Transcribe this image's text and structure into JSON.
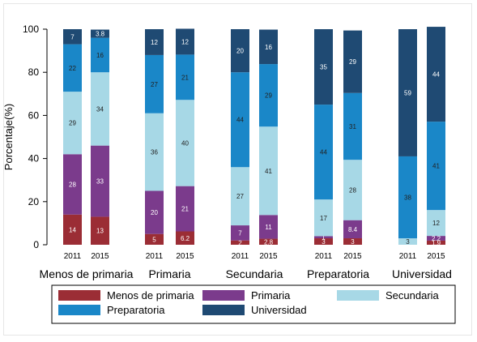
{
  "chart_data": {
    "type": "bar",
    "stacked": true,
    "ylabel": "Porcentaje(%)",
    "ylim": [
      0,
      100
    ],
    "yticks": [
      0,
      20,
      40,
      60,
      80,
      100
    ],
    "groups": [
      "Menos de primaria",
      "Primaria",
      "Secundaria",
      "Preparatoria",
      "Universidad"
    ],
    "years": [
      "2011",
      "2015"
    ],
    "series": [
      {
        "name": "Menos de primaria",
        "color": "#9b2d35",
        "values": [
          [
            14,
            13
          ],
          [
            5,
            6.2
          ],
          [
            2,
            2.8
          ],
          [
            3,
            3
          ],
          [
            0,
            1.9
          ]
        ],
        "labels": [
          [
            "14",
            "13"
          ],
          [
            "5",
            "6.2"
          ],
          [
            "2",
            "2.8"
          ],
          [
            "3",
            "3"
          ],
          [
            "",
            "1.9"
          ]
        ]
      },
      {
        "name": "Primaria",
        "color": "#7b3b8c",
        "values": [
          [
            28,
            33
          ],
          [
            20,
            21
          ],
          [
            7,
            11
          ],
          [
            1,
            8.4
          ],
          [
            0,
            2.2
          ]
        ],
        "labels": [
          [
            "28",
            "33"
          ],
          [
            "20",
            "21"
          ],
          [
            "7",
            "11"
          ],
          [
            "1",
            "8.4"
          ],
          [
            "",
            "2.2"
          ]
        ]
      },
      {
        "name": "Secundaria",
        "color": "#a7d8e6",
        "values": [
          [
            29,
            34
          ],
          [
            36,
            40
          ],
          [
            27,
            41
          ],
          [
            17,
            28
          ],
          [
            3,
            12
          ]
        ],
        "labels": [
          [
            "29",
            "34"
          ],
          [
            "36",
            "40"
          ],
          [
            "27",
            "41"
          ],
          [
            "17",
            "28"
          ],
          [
            "3",
            "12"
          ]
        ]
      },
      {
        "name": "Preparatoria",
        "color": "#1a87c8",
        "values": [
          [
            22,
            16
          ],
          [
            27,
            21
          ],
          [
            44,
            29
          ],
          [
            44,
            31
          ],
          [
            38,
            41
          ]
        ],
        "labels": [
          [
            "22",
            "16"
          ],
          [
            "27",
            "21"
          ],
          [
            "44",
            "29"
          ],
          [
            "44",
            "31"
          ],
          [
            "38",
            "41"
          ]
        ]
      },
      {
        "name": "Universidad",
        "color": "#1f4a73",
        "values": [
          [
            7,
            3.8
          ],
          [
            12,
            12
          ],
          [
            20,
            16
          ],
          [
            35,
            29
          ],
          [
            59,
            44
          ]
        ],
        "labels": [
          [
            "7",
            "3.8"
          ],
          [
            "12",
            "12"
          ],
          [
            "20",
            "16"
          ],
          [
            "35",
            "29"
          ],
          [
            "59",
            "44"
          ]
        ]
      }
    ],
    "legend": {
      "position": "bottom",
      "columns": 3
    }
  }
}
